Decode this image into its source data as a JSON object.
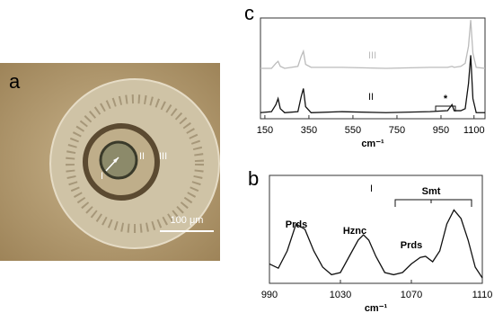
{
  "micrograph": {
    "panel": "a",
    "labels": [
      "I",
      "II",
      "III"
    ],
    "scale_bar": "100 μm"
  },
  "chart_data": [
    {
      "type": "line",
      "panel": "c",
      "x_label": "cm⁻¹",
      "x": [
        130,
        180,
        200,
        210,
        220,
        240,
        300,
        315,
        325,
        335,
        360,
        500,
        700,
        900,
        980,
        1000,
        1010,
        1040,
        1060,
        1075,
        1085,
        1095,
        1110,
        1150
      ],
      "series": [
        {
          "name": "III",
          "color": "#bbbbbb",
          "values": [
            50,
            50,
            55,
            57,
            52,
            50,
            52,
            62,
            67,
            54,
            51,
            51,
            50,
            51,
            51,
            52,
            51,
            52,
            55,
            72,
            98,
            65,
            51,
            50
          ]
        },
        {
          "name": "II",
          "color": "#111111",
          "values": [
            6,
            7,
            14,
            20,
            10,
            6,
            7,
            22,
            30,
            12,
            6,
            7,
            6,
            7,
            8,
            14,
            8,
            8,
            10,
            35,
            63,
            20,
            6,
            6
          ]
        }
      ],
      "annotations": [
        "*"
      ],
      "xlim": [
        130,
        1150
      ],
      "ylim": [
        0,
        100
      ],
      "xticks": [
        150,
        350,
        550,
        750,
        950,
        1100
      ]
    },
    {
      "type": "line",
      "panel": "b",
      "x_label": "cm⁻¹",
      "x": [
        990,
        995,
        1000,
        1005,
        1010,
        1015,
        1020,
        1025,
        1030,
        1035,
        1040,
        1043,
        1046,
        1050,
        1055,
        1060,
        1065,
        1070,
        1075,
        1078,
        1082,
        1086,
        1090,
        1094,
        1098,
        1102,
        1106,
        1110
      ],
      "series": [
        {
          "name": "I",
          "color": "#111111",
          "values": [
            18,
            14,
            30,
            55,
            50,
            30,
            15,
            8,
            10,
            25,
            40,
            45,
            40,
            25,
            10,
            8,
            10,
            18,
            24,
            25,
            20,
            30,
            55,
            68,
            60,
            40,
            15,
            5
          ]
        }
      ],
      "annotations": [
        "Prds",
        "Hznc",
        "Prds",
        "Smt"
      ],
      "xlim": [
        990,
        1110
      ],
      "ylim": [
        0,
        100
      ],
      "xticks": [
        990,
        1030,
        1070,
        1110
      ]
    }
  ]
}
